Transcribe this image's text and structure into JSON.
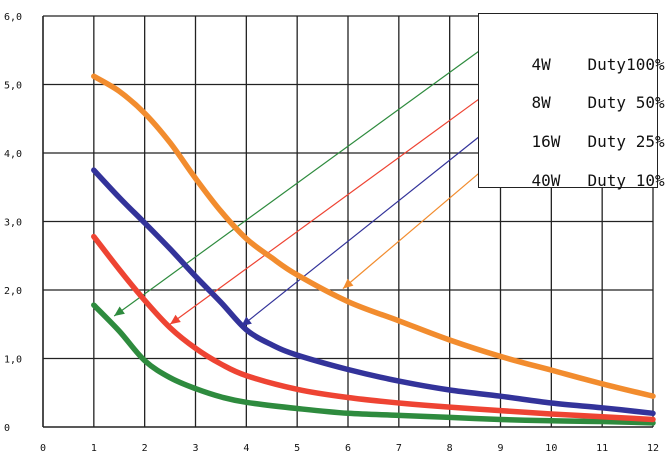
{
  "chart_data": {
    "type": "line",
    "title": "",
    "xlabel": "",
    "ylabel": "",
    "xlim": [
      0,
      12
    ],
    "ylim": [
      0,
      6
    ],
    "grid": true,
    "x_ticks": [
      "0",
      "1",
      "2",
      "3",
      "4",
      "5",
      "6",
      "7",
      "8",
      "9",
      "10",
      "11",
      "12"
    ],
    "y_ticks": [
      "0",
      "1,0",
      "2,0",
      "3,0",
      "4,0",
      "5,0",
      "6,0"
    ],
    "legend": {
      "placement": "top-right",
      "entries": [
        {
          "power": "4W",
          "duty": "Duty100%",
          "color": "#2e8b3e"
        },
        {
          "power": "8W",
          "duty": "Duty 50%",
          "color": "#ee4433"
        },
        {
          "power": "16W",
          "duty": "Duty 25%",
          "color": "#33339a"
        },
        {
          "power": "40W",
          "duty": "Duty 10%",
          "color": "#f28c2e"
        }
      ]
    },
    "series": [
      {
        "color": "#2e8b3e",
        "x": [
          1,
          1.5,
          2,
          2.5,
          3,
          3.5,
          4,
          5,
          6,
          7,
          8,
          9,
          10,
          11,
          12
        ],
        "y": [
          1.78,
          1.4,
          0.97,
          0.72,
          0.56,
          0.44,
          0.36,
          0.27,
          0.2,
          0.17,
          0.14,
          0.11,
          0.09,
          0.08,
          0.06
        ]
      },
      {
        "color": "#ee4433",
        "x": [
          1,
          1.5,
          2,
          2.5,
          3,
          3.5,
          4,
          5,
          6,
          7,
          8,
          9,
          10,
          11,
          12
        ],
        "y": [
          2.78,
          2.3,
          1.85,
          1.45,
          1.15,
          0.92,
          0.75,
          0.55,
          0.43,
          0.35,
          0.29,
          0.24,
          0.19,
          0.15,
          0.11
        ]
      },
      {
        "color": "#33339a",
        "x": [
          1,
          1.5,
          2,
          2.5,
          3,
          3.5,
          4,
          4.5,
          5,
          6,
          7,
          8,
          9,
          10,
          11,
          12
        ],
        "y": [
          3.75,
          3.35,
          2.98,
          2.6,
          2.2,
          1.82,
          1.42,
          1.2,
          1.05,
          0.84,
          0.67,
          0.54,
          0.45,
          0.35,
          0.28,
          0.2
        ]
      },
      {
        "color": "#f28c2e",
        "x": [
          1,
          1.5,
          2,
          2.5,
          3,
          3.5,
          4,
          4.5,
          5,
          6,
          7,
          8,
          9,
          10,
          11,
          12
        ],
        "y": [
          5.12,
          4.9,
          4.58,
          4.15,
          3.63,
          3.15,
          2.75,
          2.47,
          2.22,
          1.83,
          1.55,
          1.27,
          1.03,
          0.83,
          0.63,
          0.45
        ]
      }
    ],
    "annotations": [
      {
        "type": "arrow",
        "color": "#2e8b3e",
        "from": [
          8.6,
          5.5
        ],
        "to": [
          1.4,
          1.62
        ]
      },
      {
        "type": "arrow",
        "color": "#ee4433",
        "from": [
          8.6,
          4.8
        ],
        "to": [
          2.5,
          1.5
        ]
      },
      {
        "type": "arrow",
        "color": "#33339a",
        "from": [
          8.6,
          4.25
        ],
        "to": [
          3.9,
          1.47
        ]
      },
      {
        "type": "arrow",
        "color": "#f28c2e",
        "from": [
          8.6,
          3.72
        ],
        "to": [
          5.9,
          2.02
        ]
      }
    ]
  }
}
